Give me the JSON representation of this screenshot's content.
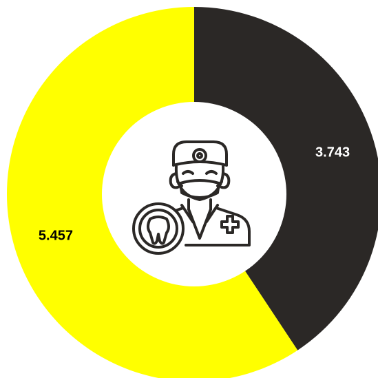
{
  "chart_data": {
    "type": "pie",
    "variant": "donut",
    "categories": [
      "",
      ""
    ],
    "values": [
      3.743,
      5.457
    ],
    "value_labels": [
      "3.743",
      "5.457"
    ],
    "colors": [
      "#2b2826",
      "#ffff00"
    ],
    "label_colors": [
      "#ffffff",
      "#000000"
    ],
    "start_angle_deg": 0,
    "direction": "clockwise",
    "title": "",
    "legend": "none"
  },
  "center_icon": {
    "name": "dentist-icon",
    "color": "#2b2826"
  },
  "background": "#ffffff"
}
